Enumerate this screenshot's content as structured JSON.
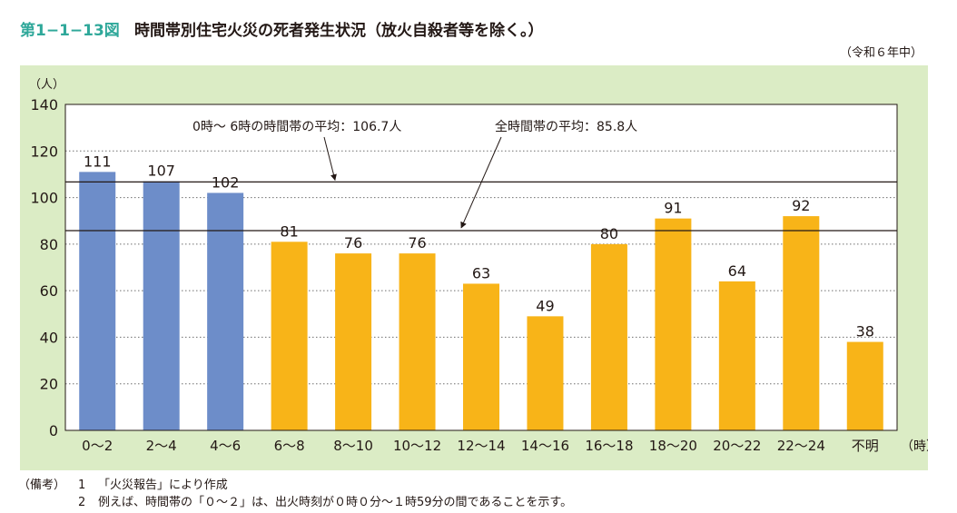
{
  "figure": {
    "number": "第1−1−13図",
    "title": "時間帯別住宅火災の死者発生状況（放火自殺者等を除く。）",
    "period": "（令和６年中）"
  },
  "notes": {
    "label": "（備考）",
    "items": [
      {
        "num": "1",
        "text": "「火災報告」により作成"
      },
      {
        "num": "2",
        "text": "例えば、時間帯の「０～２」は、出火時刻が０時０分～１時59分の間であることを示す。"
      }
    ]
  },
  "colors": {
    "panel": "#dbecc5",
    "bar_blue": "#6d8dc9",
    "bar_orange": "#f8b418",
    "accent": "#2fa89a"
  },
  "chart_data": {
    "type": "bar",
    "categories": [
      "0～2",
      "2～4",
      "4～6",
      "6～8",
      "8～10",
      "10～12",
      "12～14",
      "14～16",
      "16～18",
      "18～20",
      "20～22",
      "22～24",
      "不明"
    ],
    "values": [
      111,
      107,
      102,
      81,
      76,
      76,
      63,
      49,
      80,
      91,
      64,
      92,
      38
    ],
    "bar_colors": [
      "#6d8dc9",
      "#6d8dc9",
      "#6d8dc9",
      "#f8b418",
      "#f8b418",
      "#f8b418",
      "#f8b418",
      "#f8b418",
      "#f8b418",
      "#f8b418",
      "#f8b418",
      "#f8b418",
      "#f8b418"
    ],
    "ylabel": "（人）",
    "xlabel": "（時）",
    "ylim": [
      0,
      140
    ],
    "yticks": [
      0,
      20,
      40,
      60,
      80,
      100,
      120,
      140
    ],
    "grid": "dotted horizontal",
    "reference_lines": [
      {
        "value": 106.7,
        "label": "0時～ 6時の時間帯の平均：106.7人"
      },
      {
        "value": 85.8,
        "label": "全時間帯の平均：85.8人"
      }
    ]
  }
}
